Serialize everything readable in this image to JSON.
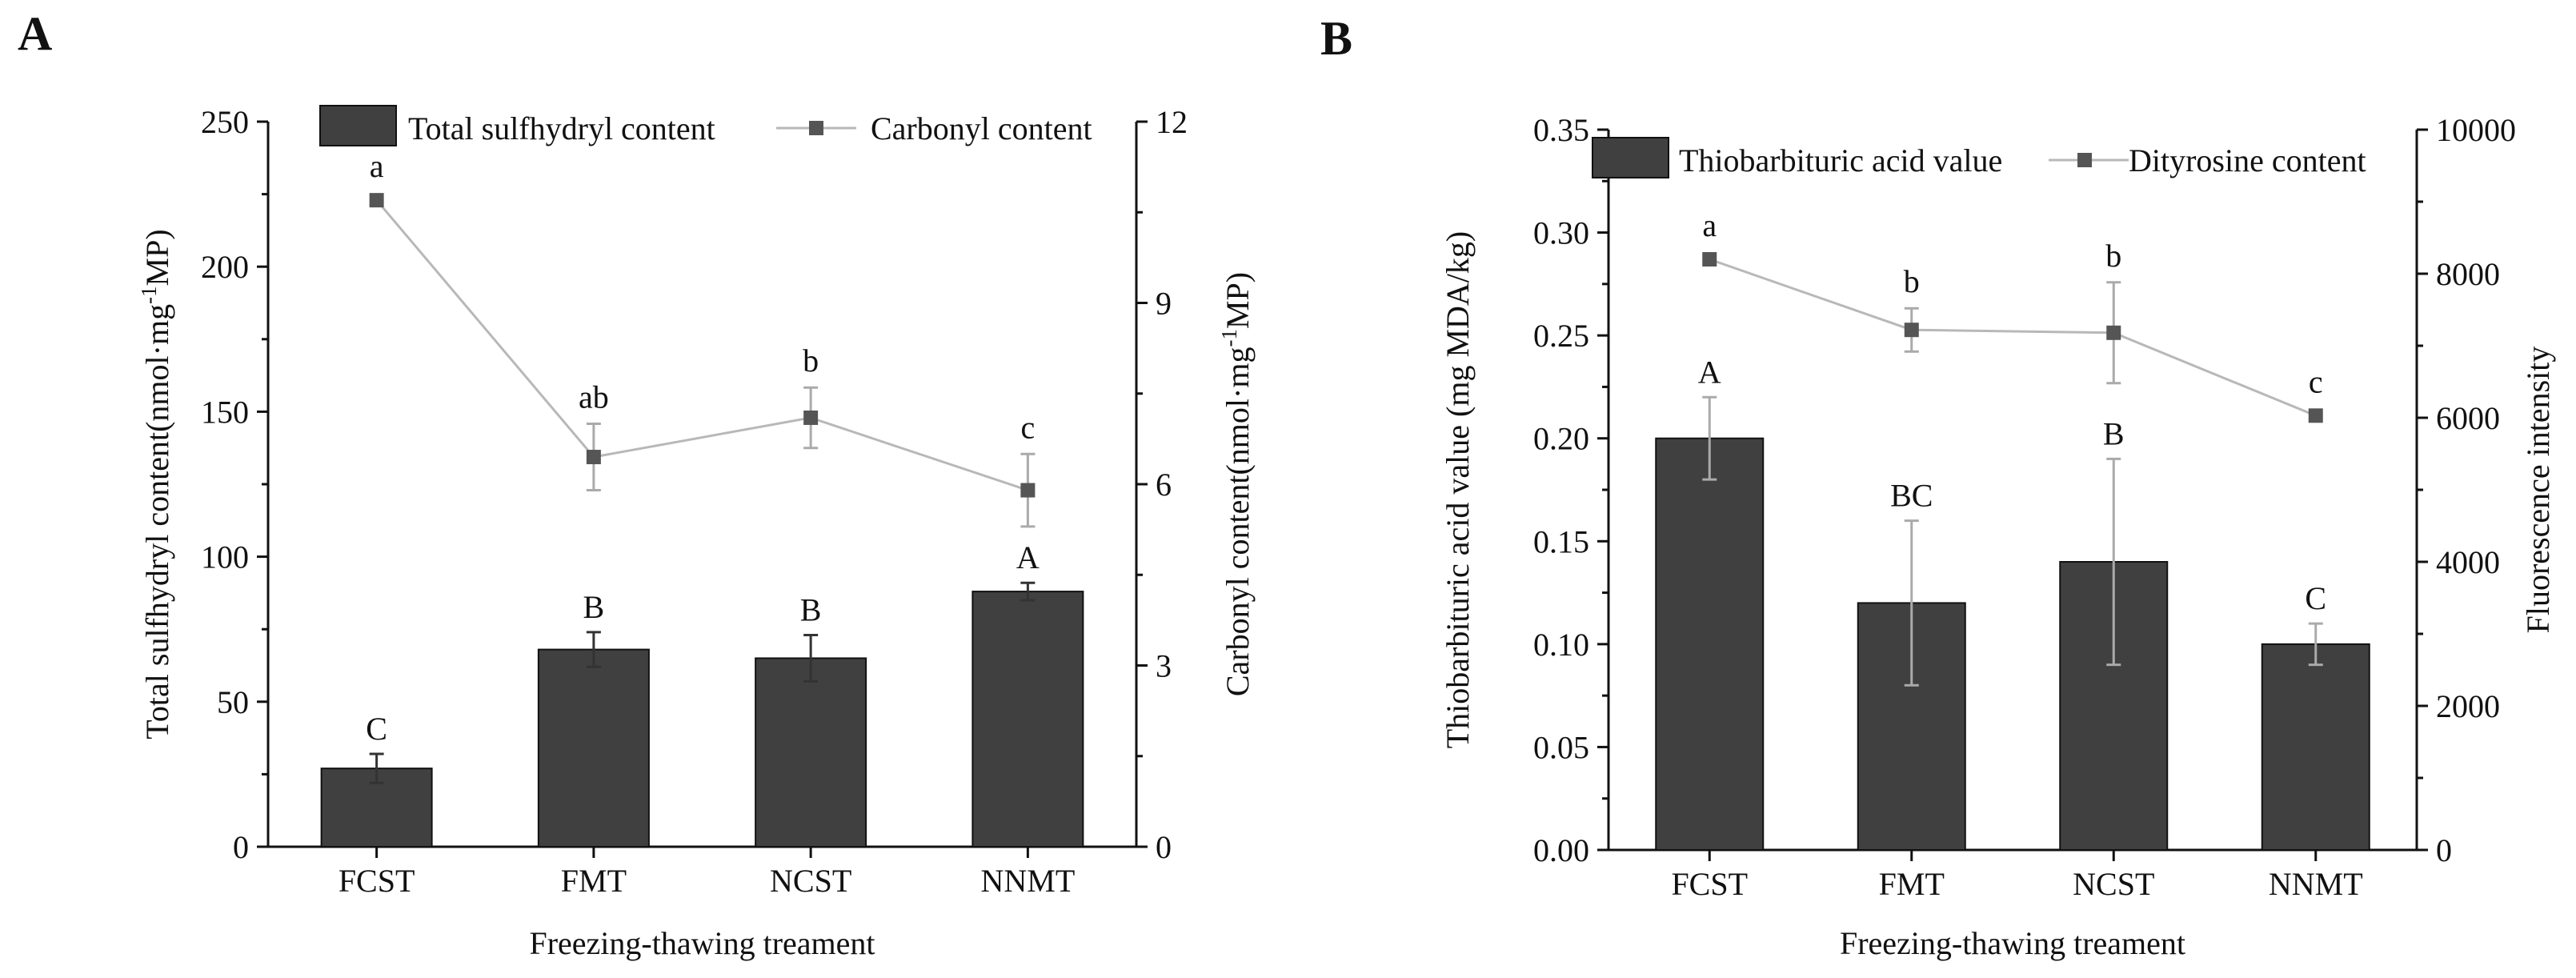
{
  "chart_data": [
    {
      "panel": "A",
      "type": "bar",
      "categories": [
        "FCST",
        "FMT",
        "NCST",
        "NNMT"
      ],
      "xlabel": "Freezing-thawing treament",
      "series": [
        {
          "name": "Total sulfhydryl content",
          "kind": "bar",
          "axis": "left",
          "values": [
            27,
            68,
            65,
            88
          ],
          "errors": [
            5,
            6,
            8,
            3
          ],
          "letters": [
            "C",
            "B",
            "B",
            "A"
          ]
        },
        {
          "name": "Carbonyl content",
          "kind": "line",
          "axis": "right",
          "values": [
            10.7,
            6.45,
            7.1,
            5.9
          ],
          "errors": [
            0,
            0.55,
            0.5,
            0.6
          ],
          "letters": [
            "a",
            "ab",
            "b",
            "c"
          ]
        }
      ],
      "left_axis": {
        "label_parts": [
          "Total sulfhydryl content(nmol·mg",
          "-1",
          "MP)"
        ],
        "range": [
          0,
          250
        ],
        "ticks": [
          "0",
          "50",
          "100",
          "150",
          "200",
          "250"
        ]
      },
      "right_axis": {
        "label_parts": [
          "Carbonyl content(nmol·mg",
          "-1",
          "MP)"
        ],
        "range": [
          0,
          12
        ],
        "ticks": [
          "0",
          "3",
          "6",
          "9",
          "12"
        ]
      },
      "legend": "top-center"
    },
    {
      "panel": "B",
      "type": "bar",
      "categories": [
        "FCST",
        "FMT",
        "NCST",
        "NNMT"
      ],
      "xlabel": "Freezing-thawing treament",
      "series": [
        {
          "name": "Thiobarbituric acid value",
          "kind": "bar",
          "axis": "left",
          "values": [
            0.2,
            0.12,
            0.14,
            0.1
          ],
          "errors": [
            0.02,
            0.04,
            0.05,
            0.01
          ],
          "letters": [
            "A",
            "BC",
            "B",
            "C"
          ]
        },
        {
          "name": "Dityrosine content",
          "kind": "line",
          "axis": "right",
          "values": [
            8200,
            7220,
            7180,
            6030
          ],
          "errors": [
            0,
            300,
            700,
            0
          ],
          "letters": [
            "a",
            "b",
            "b",
            "c"
          ]
        }
      ],
      "left_axis": {
        "label_parts": [
          "Thiobarbituric acid value (mg MDA/kg)"
        ],
        "range": [
          0,
          0.35
        ],
        "ticks": [
          "0.00",
          "0.05",
          "0.10",
          "0.15",
          "0.20",
          "0.25",
          "0.30",
          "0.35"
        ]
      },
      "right_axis": {
        "label_parts": [
          "Fluorescence intensity"
        ],
        "range": [
          0,
          10000
        ],
        "ticks": [
          "0",
          "2000",
          "4000",
          "6000",
          "8000",
          "10000"
        ]
      },
      "legend": "top-center"
    }
  ]
}
